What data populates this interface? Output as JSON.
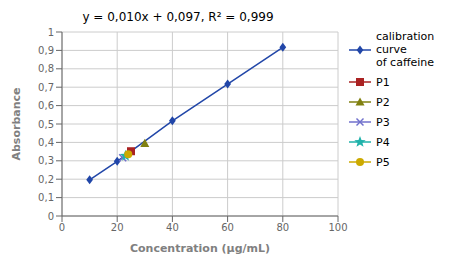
{
  "chart_data": {
    "type": "scatter",
    "title": "y = 0,010x + 0,097, R² = 0,999",
    "xlabel": "Concentration (µg/mL)",
    "ylabel": "Absorbance",
    "xlim": [
      0,
      100
    ],
    "ylim": [
      0,
      1.0
    ],
    "xticks": [
      0,
      20,
      40,
      60,
      80,
      100
    ],
    "yticks": [
      0,
      {
        "value": 0.1,
        "label": "0,1"
      },
      {
        "value": 0.2,
        "label": "0,2"
      },
      {
        "value": 0.3,
        "label": "0,3"
      },
      {
        "value": 0.4,
        "label": "0,4"
      },
      {
        "value": 0.5,
        "label": "0,5"
      },
      {
        "value": 0.6,
        "label": "0,6"
      },
      {
        "value": 0.7,
        "label": "0,7"
      },
      {
        "value": 0.8,
        "label": "0,8"
      },
      {
        "value": 0.9,
        "label": "0,9"
      },
      1
    ],
    "grid": true,
    "legend": "right",
    "series": [
      {
        "name": "calibration curve\nof caffeine",
        "type": "line",
        "marker": "diamond",
        "color": "#2146a8",
        "x": [
          10,
          20,
          40,
          60,
          80
        ],
        "values": [
          0.197,
          0.297,
          0.517,
          0.717,
          0.917
        ]
      },
      {
        "name": "P1",
        "marker": "square",
        "color": "#aa2222",
        "x": [
          25
        ],
        "values": [
          0.352
        ]
      },
      {
        "name": "P2",
        "marker": "triangle",
        "color": "#808010",
        "x": [
          30
        ],
        "values": [
          0.395
        ]
      },
      {
        "name": "P3",
        "marker": "x",
        "color": "#7070cc",
        "x": [
          22
        ],
        "values": [
          0.317
        ]
      },
      {
        "name": "P4",
        "marker": "star",
        "color": "#20b2aa",
        "x": [
          23
        ],
        "values": [
          0.327
        ]
      },
      {
        "name": "P5",
        "marker": "circle",
        "color": "#ccaa00",
        "x": [
          24
        ],
        "values": [
          0.335
        ]
      }
    ]
  }
}
